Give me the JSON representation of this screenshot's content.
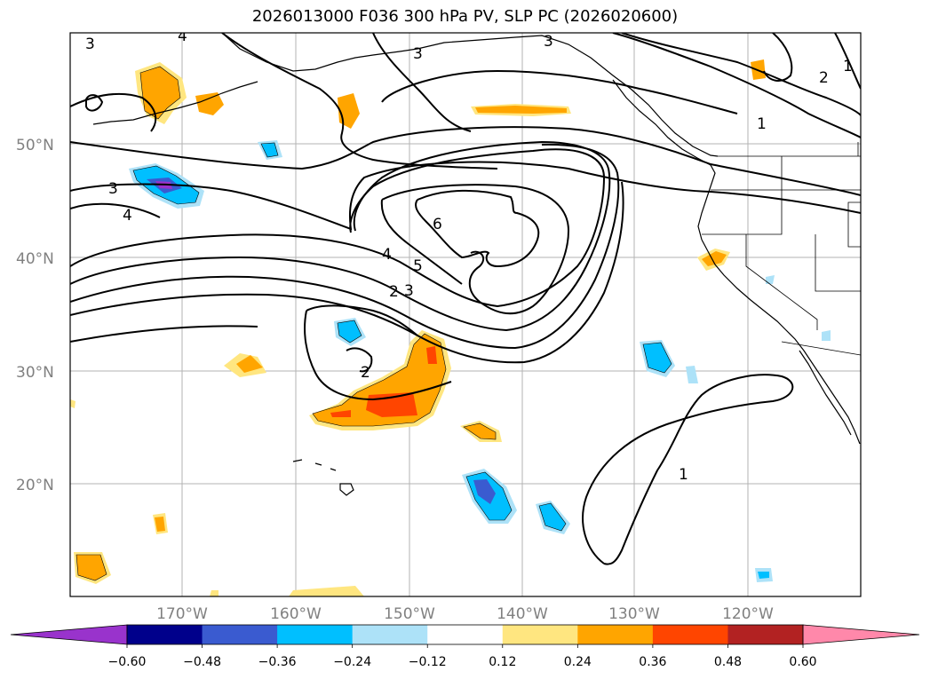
{
  "title": "2026013000 F036 300 hPa PV, SLP PC (2026020600)",
  "map": {
    "lon_labels": [
      "170°W",
      "160°W",
      "150°W",
      "140°W",
      "130°W",
      "120°W"
    ],
    "lat_labels": [
      "50°N",
      "40°N",
      "30°N",
      "20°N"
    ],
    "contour_labels": [
      "3",
      "3",
      "3",
      "3",
      "4",
      "2",
      "1",
      "1",
      "6",
      "5",
      "4",
      "3",
      "2",
      "2",
      "1",
      "4"
    ]
  },
  "colorbar": {
    "ticks": [
      "−0.60",
      "−0.48",
      "−0.36",
      "−0.24",
      "−0.12",
      "0.12",
      "0.24",
      "0.36",
      "0.48",
      "0.60"
    ],
    "colors": [
      "#9933cc",
      "#00008b",
      "#3a5bd0",
      "#00bfff",
      "#ade2f8",
      "#ffffff",
      "#ffe680",
      "#ffa500",
      "#ff4500",
      "#b22222",
      "#ff88aa",
      "#ff88aa"
    ]
  }
}
